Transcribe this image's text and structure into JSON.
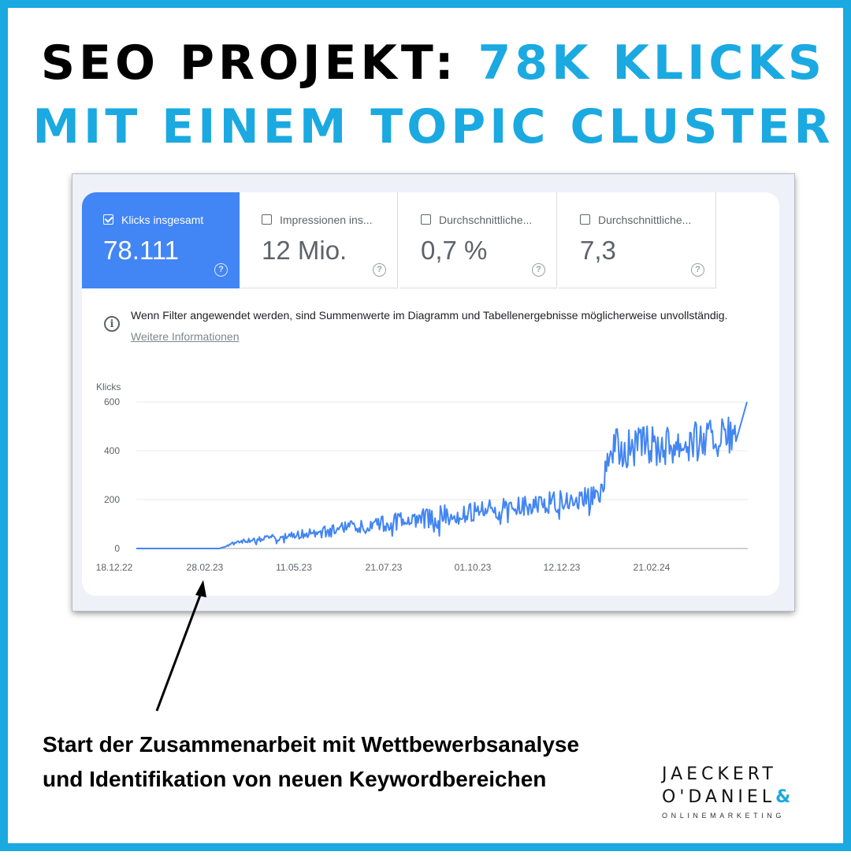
{
  "headline": {
    "line1_prefix": "SEO PROJEKT:",
    "line1_accent": "78K KLICKS",
    "line2": "MIT EINEM TOPIC CLUSTER"
  },
  "metrics": [
    {
      "label": "Klicks insgesamt",
      "value": "78.111",
      "checked": true
    },
    {
      "label": "Impressionen ins...",
      "value": "12 Mio.",
      "checked": false
    },
    {
      "label": "Durchschnittliche...",
      "value": "0,7 %",
      "checked": false
    },
    {
      "label": "Durchschnittliche...",
      "value": "7,3",
      "checked": false
    }
  ],
  "notice": {
    "text": "Wenn Filter angewendet werden, sind Summenwerte im Diagramm und Tabellenergebnisse möglicherweise unvollständig.",
    "link": "Weitere Informationen"
  },
  "colors": {
    "accent": "#1BA9E1",
    "active_tile": "#4285F4",
    "line": "#4285F4"
  },
  "chart_data": {
    "type": "line",
    "ylabel": "Klicks",
    "ylim": [
      0,
      600
    ],
    "yticks": [
      0,
      200,
      400,
      600
    ],
    "xticks": [
      "18.12.22",
      "28.02.23",
      "11.05.23",
      "21.07.23",
      "01.10.23",
      "12.12.23",
      "21.02.24"
    ],
    "grid": true,
    "series": [
      {
        "x": [
          "18.12.22",
          "28.02.23",
          "11.05.23",
          "21.07.23",
          "01.10.23",
          "12.12.23",
          "21.02.24"
        ],
        "values": [
          0,
          5,
          60,
          110,
          150,
          200,
          480
        ]
      }
    ]
  },
  "caption": "Start der Zusammenarbeit mit Wettbewerbsanalyse und Identifikation von neuen Keywordbereichen",
  "logo": {
    "line1": "JAECKERT",
    "line2": "O'DANIEL",
    "amp": "&",
    "line3": "ONLINEMARKETING"
  }
}
